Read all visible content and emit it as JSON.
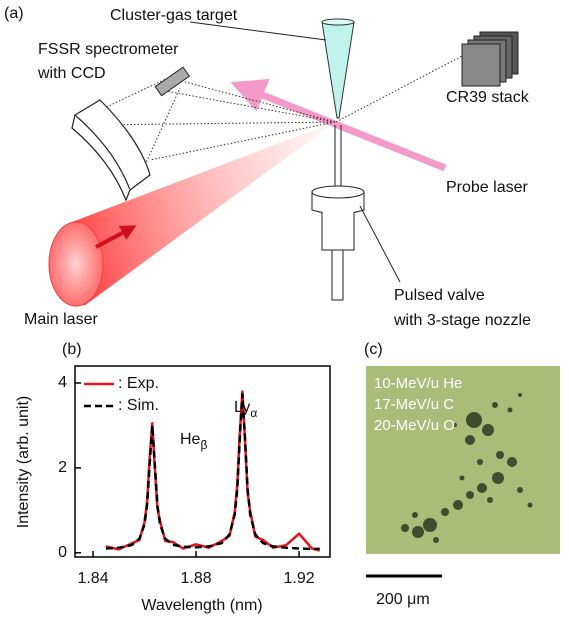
{
  "panel_a": {
    "label": "(a)",
    "cluster_gas_target": "Cluster-gas target",
    "spectrometer": [
      "FSSR spectrometer",
      "with CCD"
    ],
    "cr39": "CR39 stack",
    "probe_laser": "Probe laser",
    "main_laser": "Main laser",
    "pulsed_valve": [
      "Pulsed valve",
      "with 3-stage nozzle"
    ]
  },
  "chart_data": {
    "type": "line",
    "panel_label": "(b)",
    "xlabel": "Wavelength (nm)",
    "ylabel": "Intensity (arb. unit)",
    "x": [
      1.845,
      1.85,
      1.855,
      1.858,
      1.86,
      1.861,
      1.862,
      1.863,
      1.864,
      1.865,
      1.866,
      1.868,
      1.871,
      1.875,
      1.88,
      1.885,
      1.89,
      1.893,
      1.895,
      1.896,
      1.897,
      1.898,
      1.899,
      1.9,
      1.901,
      1.903,
      1.906,
      1.91,
      1.915,
      1.92,
      1.925,
      1.928
    ],
    "series": [
      {
        "name": ": Exp.",
        "color": "#e8141c",
        "dash": "solid",
        "values": [
          0.15,
          0.08,
          0.22,
          0.3,
          0.72,
          1.2,
          2.25,
          3.05,
          2.0,
          1.05,
          0.75,
          0.28,
          0.25,
          0.1,
          0.2,
          0.12,
          0.28,
          0.4,
          0.95,
          1.62,
          2.8,
          3.8,
          2.65,
          1.42,
          0.98,
          0.38,
          0.3,
          0.12,
          0.18,
          0.45,
          0.1,
          0.05
        ]
      },
      {
        "name": ": Sim.",
        "color": "#000000",
        "dash": "dashed",
        "values": [
          0.1,
          0.12,
          0.18,
          0.33,
          0.67,
          1.13,
          2.1,
          3.0,
          2.1,
          1.13,
          0.67,
          0.33,
          0.19,
          0.14,
          0.13,
          0.15,
          0.23,
          0.43,
          0.9,
          1.5,
          2.7,
          3.74,
          2.7,
          1.5,
          0.9,
          0.43,
          0.23,
          0.15,
          0.12,
          0.1,
          0.09,
          0.09
        ]
      }
    ],
    "xlim": [
      1.833,
      1.932
    ],
    "ylim": [
      -0.1,
      4.4
    ],
    "xticks": [
      1.84,
      1.88,
      1.92
    ],
    "yticks": [
      0,
      2,
      4
    ],
    "annotations": [
      {
        "text": "He",
        "sub": "β"
      },
      {
        "text": "Ly",
        "sub": "α"
      }
    ]
  },
  "panel_c": {
    "label": "(c)",
    "ions": [
      "10-MeV/u He",
      "17-MeV/u C",
      "20-MeV/u O"
    ],
    "scale_bar": "200 μm"
  }
}
